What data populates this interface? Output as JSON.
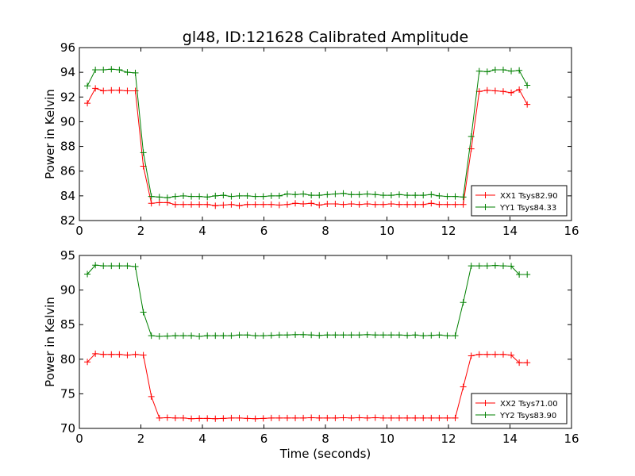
{
  "figure": {
    "title": "gl48, ID:121628 Calibrated Amplitude"
  },
  "chart_data": [
    {
      "type": "line",
      "title": "gl48, ID:121628 Calibrated Amplitude",
      "xlabel": "",
      "ylabel": "Power in Kelvin",
      "xlim": [
        0,
        16
      ],
      "ylim": [
        82,
        96
      ],
      "xticks": [
        0,
        2,
        4,
        6,
        8,
        10,
        12,
        14,
        16
      ],
      "yticks": [
        82,
        84,
        86,
        88,
        90,
        92,
        94,
        96
      ],
      "legend_position": "lower-right",
      "grid": false,
      "x": [
        0.26,
        0.52,
        0.78,
        1.04,
        1.3,
        1.56,
        1.82,
        2.08,
        2.34,
        2.6,
        2.86,
        3.12,
        3.38,
        3.64,
        3.9,
        4.16,
        4.42,
        4.68,
        4.94,
        5.2,
        5.46,
        5.72,
        5.98,
        6.24,
        6.5,
        6.76,
        7.02,
        7.28,
        7.54,
        7.8,
        8.06,
        8.32,
        8.58,
        8.84,
        9.1,
        9.36,
        9.62,
        9.88,
        10.14,
        10.4,
        10.66,
        10.92,
        11.18,
        11.44,
        11.7,
        11.96,
        12.22,
        12.48,
        12.74,
        13.0,
        13.26,
        13.52,
        13.78,
        14.04,
        14.3,
        14.56
      ],
      "series": [
        {
          "name": "XX1 Tsys82.90",
          "color": "#ff0000",
          "values": [
            91.5,
            92.7,
            92.5,
            92.55,
            92.55,
            92.5,
            92.5,
            86.4,
            83.4,
            83.45,
            83.45,
            83.3,
            83.3,
            83.3,
            83.3,
            83.3,
            83.2,
            83.25,
            83.3,
            83.2,
            83.3,
            83.3,
            83.3,
            83.3,
            83.25,
            83.3,
            83.4,
            83.35,
            83.4,
            83.25,
            83.35,
            83.35,
            83.3,
            83.35,
            83.3,
            83.35,
            83.3,
            83.3,
            83.35,
            83.3,
            83.3,
            83.3,
            83.3,
            83.4,
            83.3,
            83.3,
            83.3,
            83.3,
            87.8,
            92.45,
            92.55,
            92.5,
            92.45,
            92.35,
            92.6,
            91.4
          ]
        },
        {
          "name": "YY1 Tsys84.33",
          "color": "#008000",
          "values": [
            92.9,
            94.2,
            94.2,
            94.25,
            94.2,
            94.0,
            93.95,
            87.5,
            83.95,
            83.9,
            83.85,
            83.95,
            84.0,
            83.95,
            83.95,
            83.9,
            84.0,
            84.05,
            83.95,
            84.0,
            84.0,
            83.95,
            83.95,
            84.0,
            84.0,
            84.15,
            84.1,
            84.15,
            84.05,
            84.05,
            84.1,
            84.15,
            84.2,
            84.1,
            84.1,
            84.15,
            84.1,
            84.05,
            84.05,
            84.1,
            84.05,
            84.05,
            84.05,
            84.1,
            84.0,
            83.95,
            83.95,
            83.9,
            88.8,
            94.1,
            94.05,
            94.2,
            94.2,
            94.1,
            94.15,
            92.95
          ]
        }
      ]
    },
    {
      "type": "line",
      "title": "",
      "xlabel": "Time (seconds)",
      "ylabel": "Power in Kelvin",
      "xlim": [
        0,
        16
      ],
      "ylim": [
        70,
        95
      ],
      "xticks": [
        0,
        2,
        4,
        6,
        8,
        10,
        12,
        14,
        16
      ],
      "yticks": [
        70,
        75,
        80,
        85,
        90,
        95
      ],
      "legend_position": "lower-right",
      "grid": false,
      "x": [
        0.26,
        0.52,
        0.78,
        1.04,
        1.3,
        1.56,
        1.82,
        2.08,
        2.34,
        2.6,
        2.86,
        3.12,
        3.38,
        3.64,
        3.9,
        4.16,
        4.42,
        4.68,
        4.94,
        5.2,
        5.46,
        5.72,
        5.98,
        6.24,
        6.5,
        6.76,
        7.02,
        7.28,
        7.54,
        7.8,
        8.06,
        8.32,
        8.58,
        8.84,
        9.1,
        9.36,
        9.62,
        9.88,
        10.14,
        10.4,
        10.66,
        10.92,
        11.18,
        11.44,
        11.7,
        11.96,
        12.22,
        12.48,
        12.74,
        13.0,
        13.26,
        13.52,
        13.78,
        14.04,
        14.3,
        14.56
      ],
      "series": [
        {
          "name": "XX2 Tsys71.00",
          "color": "#ff0000",
          "values": [
            79.6,
            80.8,
            80.7,
            80.7,
            80.7,
            80.6,
            80.7,
            80.6,
            74.6,
            71.5,
            71.55,
            71.5,
            71.5,
            71.4,
            71.45,
            71.45,
            71.4,
            71.45,
            71.5,
            71.5,
            71.45,
            71.4,
            71.45,
            71.5,
            71.5,
            71.5,
            71.5,
            71.5,
            71.55,
            71.5,
            71.5,
            71.5,
            71.55,
            71.5,
            71.55,
            71.5,
            71.55,
            71.5,
            71.5,
            71.5,
            71.5,
            71.5,
            71.5,
            71.5,
            71.5,
            71.5,
            71.5,
            76.0,
            80.5,
            80.7,
            80.7,
            80.7,
            80.7,
            80.6,
            79.5,
            79.5
          ]
        },
        {
          "name": "YY2 Tsys83.90",
          "color": "#008000",
          "values": [
            92.3,
            93.6,
            93.5,
            93.5,
            93.5,
            93.5,
            93.4,
            86.8,
            83.4,
            83.3,
            83.35,
            83.4,
            83.4,
            83.4,
            83.3,
            83.4,
            83.4,
            83.4,
            83.4,
            83.5,
            83.5,
            83.4,
            83.4,
            83.45,
            83.5,
            83.5,
            83.55,
            83.55,
            83.5,
            83.45,
            83.5,
            83.5,
            83.5,
            83.5,
            83.5,
            83.55,
            83.5,
            83.5,
            83.5,
            83.5,
            83.45,
            83.5,
            83.4,
            83.45,
            83.5,
            83.4,
            83.4,
            88.2,
            93.5,
            93.5,
            93.5,
            93.55,
            93.5,
            93.45,
            92.25,
            92.25
          ]
        }
      ]
    }
  ]
}
